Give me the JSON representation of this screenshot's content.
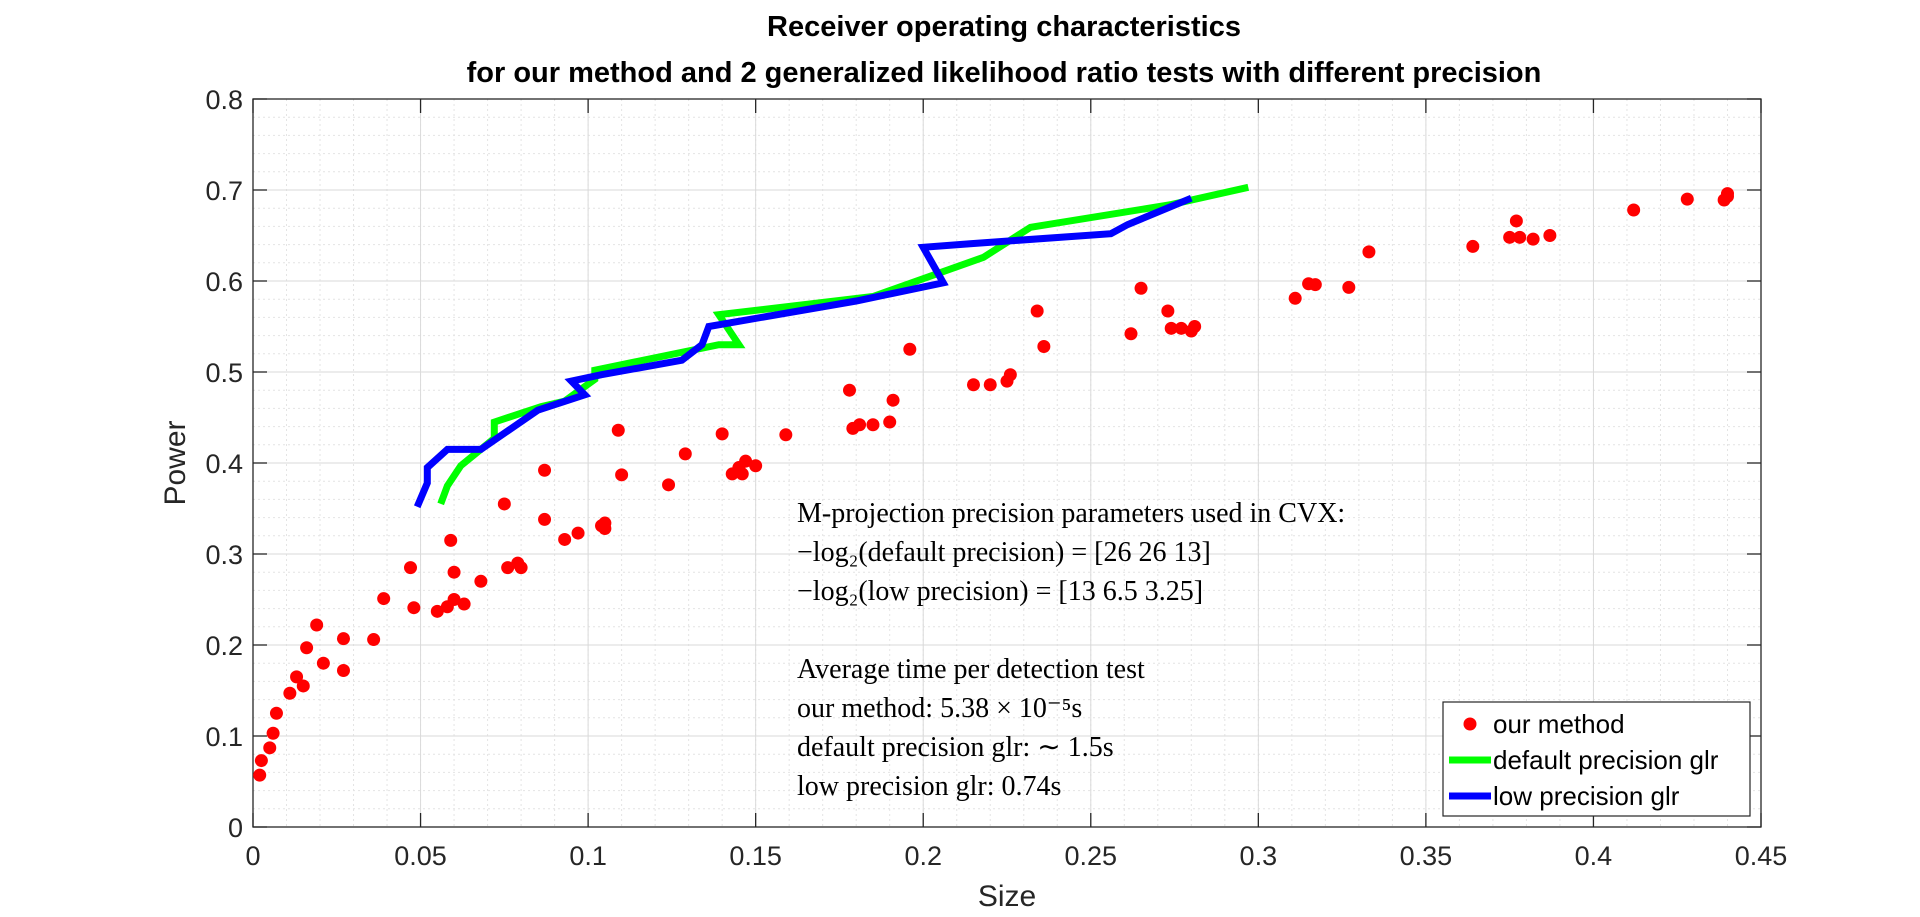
{
  "chart_data": {
    "type": "scatter",
    "title": [
      "Receiver operating characteristics",
      "for our method and 2 generalized likelihood ratio tests with different precision"
    ],
    "xlabel": "Size",
    "ylabel": "Power",
    "xlim": [
      0,
      0.45
    ],
    "ylim": [
      0,
      0.8
    ],
    "xticks": [
      0,
      0.05,
      0.1,
      0.15,
      0.2,
      0.25,
      0.3,
      0.35,
      0.4,
      0.45
    ],
    "xtick_labels": [
      "0",
      "0.05",
      "0.1",
      "0.15",
      "0.2",
      "0.25",
      "0.3",
      "0.35",
      "0.4",
      "0.45"
    ],
    "yticks": [
      0,
      0.1,
      0.2,
      0.3,
      0.4,
      0.5,
      0.6,
      0.7,
      0.8
    ],
    "ytick_labels": [
      "0",
      "0.1",
      "0.2",
      "0.3",
      "0.4",
      "0.5",
      "0.6",
      "0.7",
      "0.8"
    ],
    "grid": true,
    "minor_grid": true,
    "legend_position": "bottom-right",
    "annotation_lines": [
      "M-projection precision parameters used in CVX:",
      "−log₂(default precision) = [26 26 13]",
      "−log₂(low precision) = [13 6.5 3.25]",
      "",
      "Average time per detection test",
      "our method: 5.38 × 10⁻⁵s",
      "default precision glr: ∼ 1.5s",
      "low precision glr: 0.74s"
    ],
    "series": [
      {
        "name": "our method",
        "kind": "scatter",
        "color": "#ff0000",
        "points": [
          [
            0.002,
            0.057
          ],
          [
            0.0025,
            0.073
          ],
          [
            0.005,
            0.087
          ],
          [
            0.006,
            0.103
          ],
          [
            0.007,
            0.125
          ],
          [
            0.011,
            0.147
          ],
          [
            0.013,
            0.165
          ],
          [
            0.015,
            0.155
          ],
          [
            0.016,
            0.197
          ],
          [
            0.019,
            0.222
          ],
          [
            0.021,
            0.18
          ],
          [
            0.027,
            0.207
          ],
          [
            0.027,
            0.172
          ],
          [
            0.036,
            0.206
          ],
          [
            0.039,
            0.251
          ],
          [
            0.047,
            0.285
          ],
          [
            0.048,
            0.241
          ],
          [
            0.055,
            0.237
          ],
          [
            0.058,
            0.242
          ],
          [
            0.059,
            0.315
          ],
          [
            0.06,
            0.25
          ],
          [
            0.06,
            0.28
          ],
          [
            0.063,
            0.245
          ],
          [
            0.068,
            0.27
          ],
          [
            0.075,
            0.355
          ],
          [
            0.076,
            0.285
          ],
          [
            0.079,
            0.29
          ],
          [
            0.08,
            0.285
          ],
          [
            0.087,
            0.338
          ],
          [
            0.087,
            0.392
          ],
          [
            0.093,
            0.316
          ],
          [
            0.097,
            0.323
          ],
          [
            0.104,
            0.331
          ],
          [
            0.105,
            0.328
          ],
          [
            0.105,
            0.334
          ],
          [
            0.109,
            0.436
          ],
          [
            0.11,
            0.387
          ],
          [
            0.124,
            0.376
          ],
          [
            0.129,
            0.41
          ],
          [
            0.14,
            0.432
          ],
          [
            0.143,
            0.388
          ],
          [
            0.145,
            0.395
          ],
          [
            0.146,
            0.388
          ],
          [
            0.147,
            0.402
          ],
          [
            0.15,
            0.397
          ],
          [
            0.159,
            0.431
          ],
          [
            0.178,
            0.48
          ],
          [
            0.179,
            0.438
          ],
          [
            0.181,
            0.442
          ],
          [
            0.185,
            0.442
          ],
          [
            0.19,
            0.445
          ],
          [
            0.191,
            0.469
          ],
          [
            0.196,
            0.525
          ],
          [
            0.215,
            0.486
          ],
          [
            0.22,
            0.486
          ],
          [
            0.225,
            0.49
          ],
          [
            0.226,
            0.497
          ],
          [
            0.234,
            0.567
          ],
          [
            0.236,
            0.528
          ],
          [
            0.262,
            0.542
          ],
          [
            0.265,
            0.592
          ],
          [
            0.273,
            0.567
          ],
          [
            0.274,
            0.548
          ],
          [
            0.277,
            0.548
          ],
          [
            0.28,
            0.545
          ],
          [
            0.281,
            0.55
          ],
          [
            0.311,
            0.581
          ],
          [
            0.315,
            0.597
          ],
          [
            0.317,
            0.596
          ],
          [
            0.327,
            0.593
          ],
          [
            0.333,
            0.632
          ],
          [
            0.364,
            0.638
          ],
          [
            0.375,
            0.648
          ],
          [
            0.377,
            0.666
          ],
          [
            0.378,
            0.648
          ],
          [
            0.382,
            0.646
          ],
          [
            0.387,
            0.65
          ],
          [
            0.412,
            0.678
          ],
          [
            0.428,
            0.69
          ],
          [
            0.439,
            0.689
          ],
          [
            0.44,
            0.693
          ],
          [
            0.44,
            0.696
          ]
        ]
      },
      {
        "name": "default precision glr",
        "kind": "line",
        "color": "#00ff00",
        "points": [
          [
            0.056,
            0.355
          ],
          [
            0.058,
            0.375
          ],
          [
            0.062,
            0.397
          ],
          [
            0.072,
            0.427
          ],
          [
            0.072,
            0.445
          ],
          [
            0.086,
            0.462
          ],
          [
            0.093,
            0.468
          ],
          [
            0.102,
            0.492
          ],
          [
            0.102,
            0.502
          ],
          [
            0.139,
            0.53
          ],
          [
            0.145,
            0.53
          ],
          [
            0.139,
            0.563
          ],
          [
            0.185,
            0.583
          ],
          [
            0.218,
            0.626
          ],
          [
            0.232,
            0.659
          ],
          [
            0.274,
            0.684
          ],
          [
            0.297,
            0.703
          ]
        ]
      },
      {
        "name": "low precision glr",
        "kind": "line",
        "color": "#0000ff",
        "points": [
          [
            0.049,
            0.352
          ],
          [
            0.052,
            0.378
          ],
          [
            0.052,
            0.395
          ],
          [
            0.058,
            0.415
          ],
          [
            0.068,
            0.415
          ],
          [
            0.085,
            0.458
          ],
          [
            0.099,
            0.475
          ],
          [
            0.095,
            0.49
          ],
          [
            0.104,
            0.497
          ],
          [
            0.128,
            0.513
          ],
          [
            0.134,
            0.53
          ],
          [
            0.136,
            0.55
          ],
          [
            0.18,
            0.578
          ],
          [
            0.206,
            0.598
          ],
          [
            0.2,
            0.637
          ],
          [
            0.214,
            0.641
          ],
          [
            0.256,
            0.652
          ],
          [
            0.261,
            0.662
          ],
          [
            0.28,
            0.691
          ]
        ]
      }
    ]
  }
}
